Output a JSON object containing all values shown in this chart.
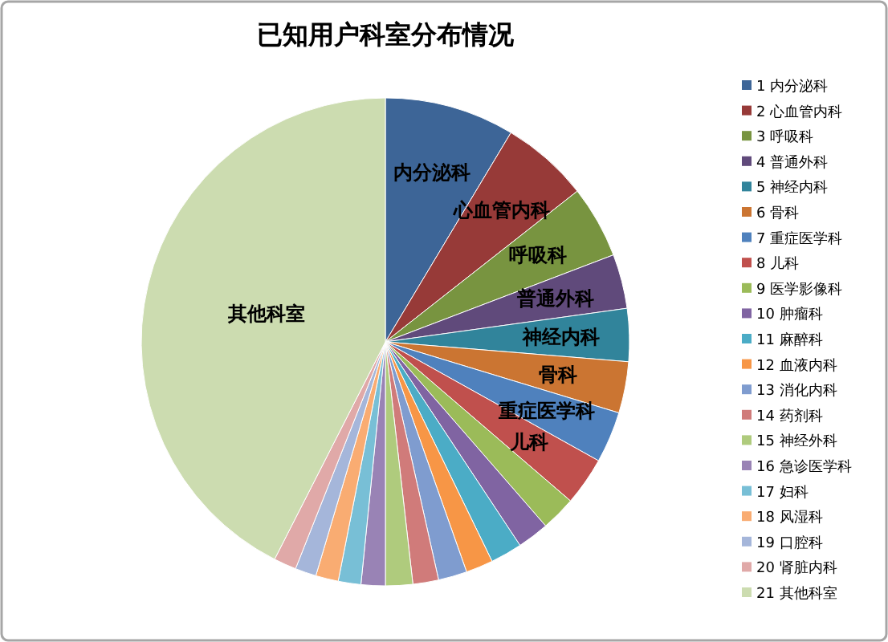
{
  "chart_data": {
    "type": "pie",
    "title": "已知用户科室分布情况",
    "categories": [
      "1 内分泌科",
      "2 心血管内科",
      "3 呼吸科",
      "4 普通外科",
      "5 神经内科",
      "6 骨科",
      "7 重症医学科",
      "8 儿科",
      "9 医学影像科",
      "10 肿瘤科",
      "11 麻醉科",
      "12 血液内科",
      "13 消化内科",
      "14 药剂科",
      "15 神经外科",
      "16 急诊医学科",
      "17 妇科",
      "18 风湿科",
      "19 口腔科",
      "20 肾脏内科",
      "21 其他科室"
    ],
    "values": [
      8.6,
      5.8,
      4.8,
      3.6,
      3.5,
      3.4,
      3.4,
      3.2,
      2.3,
      2.1,
      2.1,
      1.8,
      1.9,
      1.7,
      1.8,
      1.6,
      1.5,
      1.5,
      1.4,
      1.5,
      42.5
    ],
    "colors": [
      "#3d6597",
      "#973a38",
      "#789440",
      "#604a7b",
      "#31849b",
      "#cb7532",
      "#4f81bd",
      "#c0504d",
      "#9bbb59",
      "#8064a2",
      "#4bacc6",
      "#f79646",
      "#7f9ccf",
      "#d07b7a",
      "#afcb7d",
      "#9983b5",
      "#78bfd6",
      "#f9ac72",
      "#a5b6da",
      "#e0a9a8",
      "#ccdcb0"
    ],
    "value_labels": [
      "内分泌科",
      "心血管内科",
      "呼吸科",
      "普通外科",
      "神经内科",
      "骨科",
      "重症医学科",
      "儿科",
      null,
      null,
      null,
      null,
      null,
      null,
      null,
      null,
      null,
      null,
      null,
      null,
      "其他科室"
    ],
    "legend": "right"
  }
}
